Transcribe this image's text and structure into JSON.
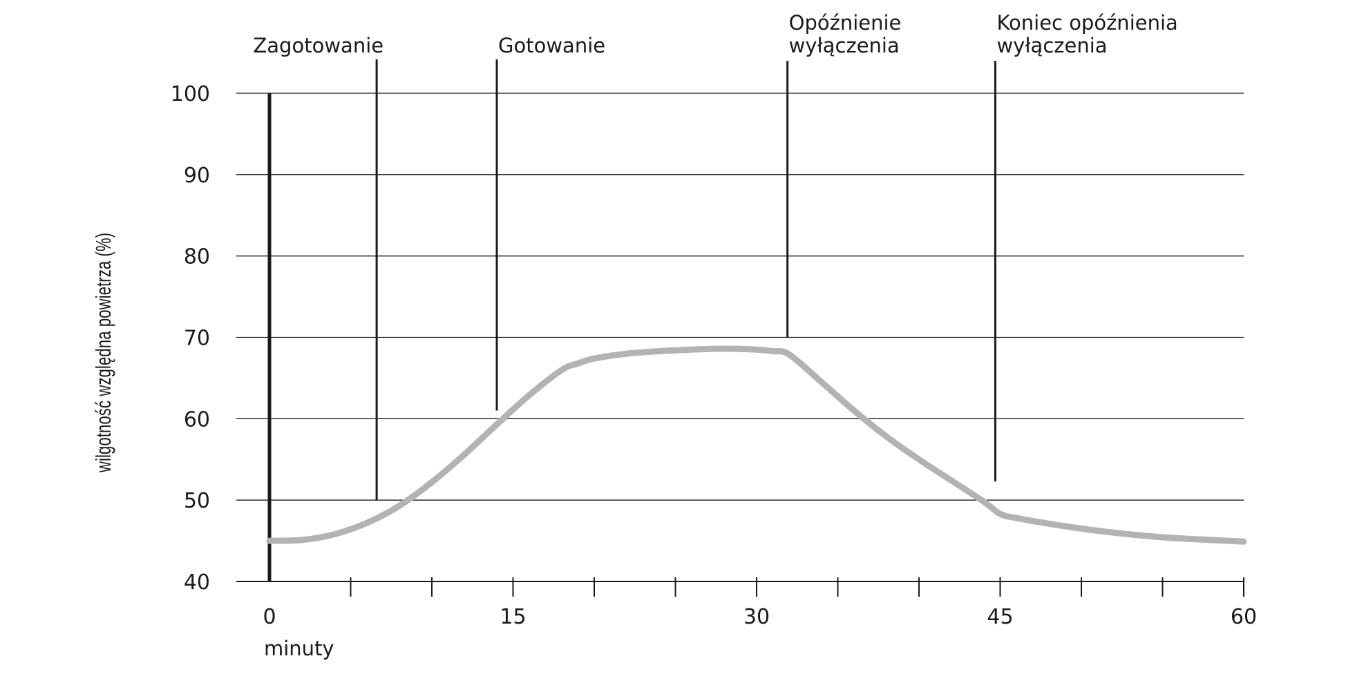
{
  "chart_data": {
    "type": "line",
    "title": "",
    "xlabel": "minuty",
    "ylabel": "wilgotność względna powietrza (%)",
    "xlim": [
      0,
      60
    ],
    "ylim": [
      40,
      100
    ],
    "x_ticks": [
      0,
      15,
      30,
      45,
      60
    ],
    "x_minor_ticks": [
      5,
      10,
      20,
      25,
      35,
      40,
      50,
      55
    ],
    "y_ticks": [
      40,
      50,
      60,
      70,
      80,
      90,
      100
    ],
    "grid": "horizontal",
    "series": [
      {
        "color": "#b3b3b3",
        "x": [
          0,
          2,
          4,
          6,
          8,
          10,
          12,
          14,
          16,
          18,
          19,
          20,
          22,
          24,
          26,
          28,
          30,
          31,
          32,
          34,
          36,
          38,
          40,
          42,
          44,
          45,
          46,
          48,
          50,
          52,
          54,
          56,
          58,
          60
        ],
        "y": [
          45,
          45.1,
          45.8,
          47.2,
          49.3,
          52.2,
          55.6,
          59.3,
          62.9,
          66.0,
          66.8,
          67.4,
          68.0,
          68.3,
          68.5,
          68.6,
          68.5,
          68.3,
          67.9,
          64.5,
          61.0,
          57.8,
          55.0,
          52.4,
          49.8,
          48.3,
          47.8,
          47.1,
          46.5,
          46.0,
          45.6,
          45.3,
          45.1,
          44.9
        ]
      }
    ],
    "phases": [
      {
        "label_lines": [
          "Zagotowanie"
        ],
        "x": 6.6,
        "y_from": 50,
        "line_top_y": 104
      },
      {
        "label_lines": [
          "Gotowanie"
        ],
        "x": 14,
        "y_from": 61,
        "line_top_y": 104
      },
      {
        "label_lines": [
          "Opóźnienie",
          "wyłączenia"
        ],
        "x": 31.9,
        "y_from": 70,
        "line_top_y": 104
      },
      {
        "label_lines": [
          "Koniec opóźnienia",
          "wyłączenia"
        ],
        "x": 44.7,
        "y_from": 52.3,
        "line_top_y": 104
      }
    ]
  }
}
